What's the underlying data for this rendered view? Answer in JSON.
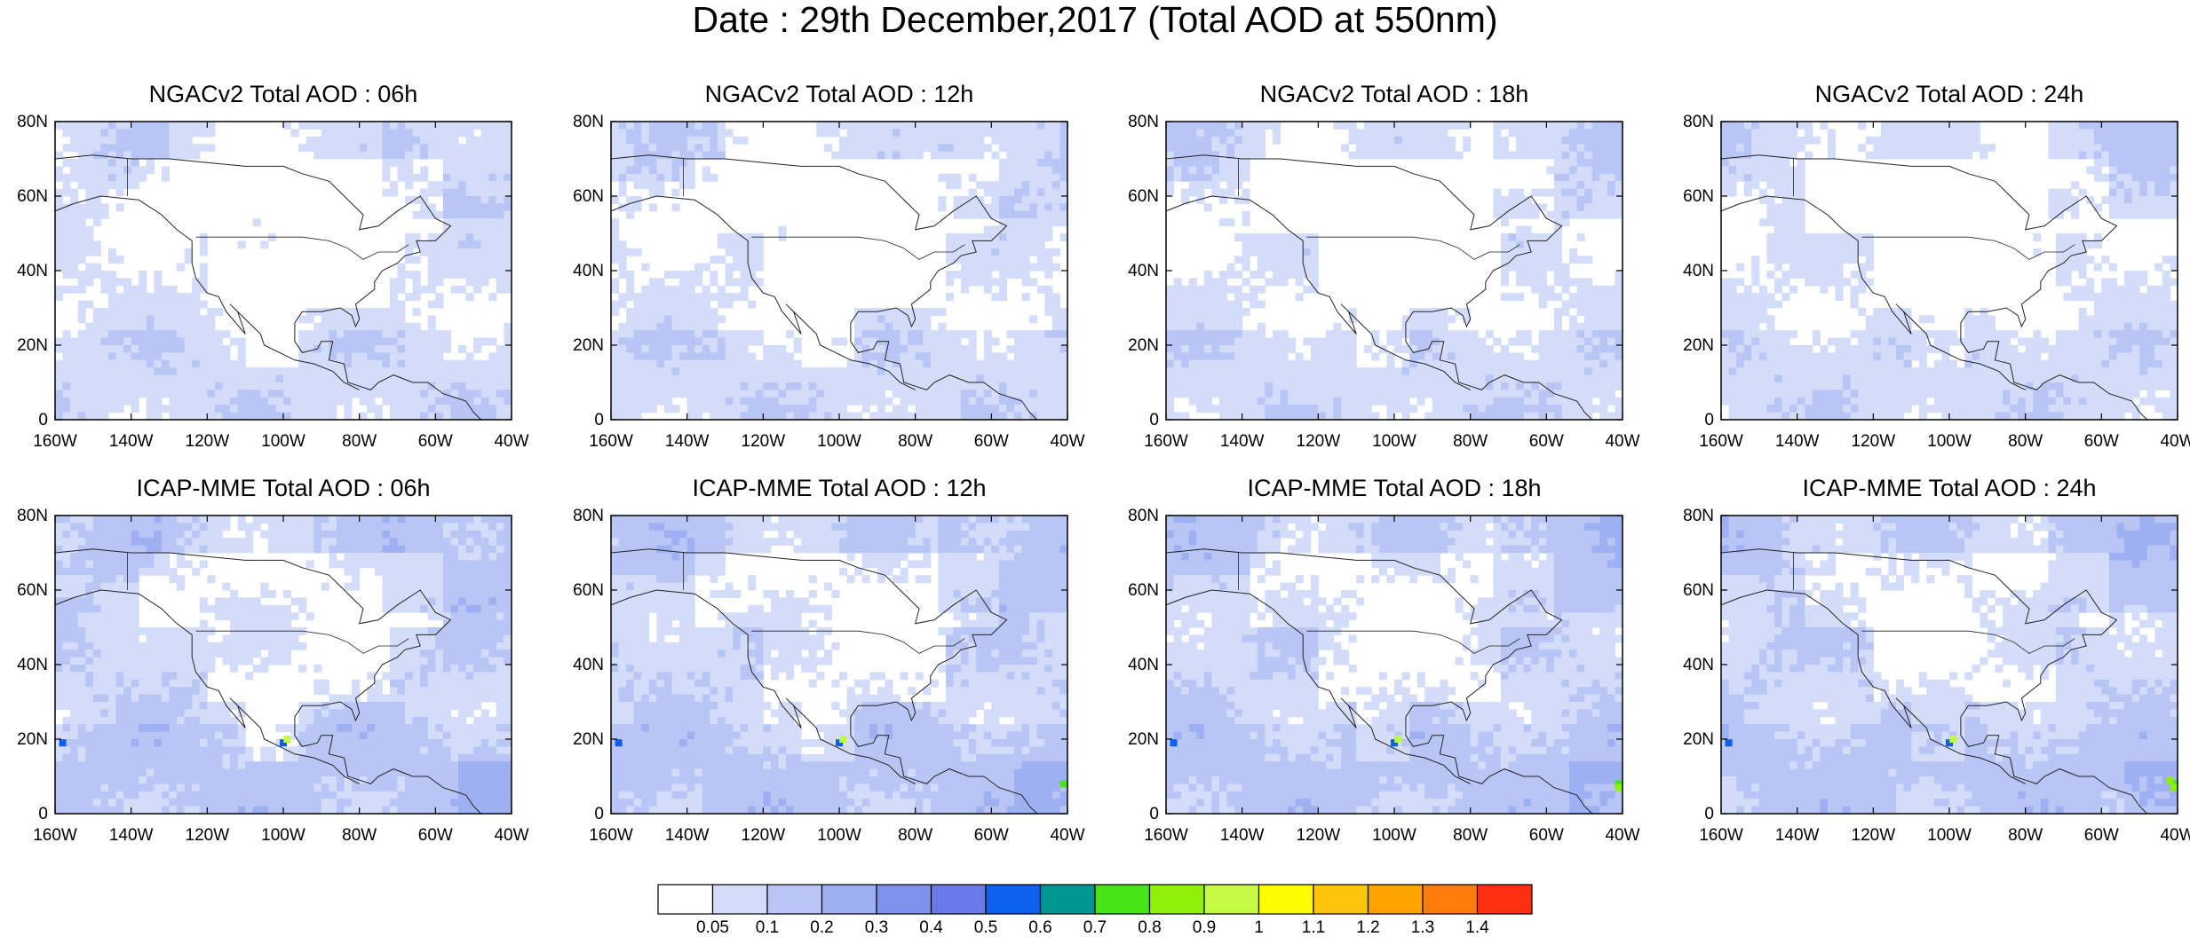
{
  "title": "Date : 29th December,2017 (Total AOD at 550nm)",
  "panels": [
    {
      "title": "NGACv2 Total AOD : 06h",
      "model": "NGACv2",
      "hour": 6
    },
    {
      "title": "NGACv2 Total AOD : 12h",
      "model": "NGACv2",
      "hour": 12
    },
    {
      "title": "NGACv2 Total AOD : 18h",
      "model": "NGACv2",
      "hour": 18
    },
    {
      "title": "NGACv2 Total AOD : 24h",
      "model": "NGACv2",
      "hour": 24
    },
    {
      "title": "ICAP-MME Total AOD : 06h",
      "model": "ICAP-MME",
      "hour": 6
    },
    {
      "title": "ICAP-MME Total AOD : 12h",
      "model": "ICAP-MME",
      "hour": 12
    },
    {
      "title": "ICAP-MME Total AOD : 18h",
      "model": "ICAP-MME",
      "hour": 18
    },
    {
      "title": "ICAP-MME Total AOD : 24h",
      "model": "ICAP-MME",
      "hour": 24
    }
  ],
  "lat_ticks": [
    "80N",
    "60N",
    "40N",
    "20N",
    "0"
  ],
  "lon_ticks": [
    "160W",
    "140W",
    "120W",
    "100W",
    "80W",
    "60W",
    "40W"
  ],
  "extent": {
    "lon_min": -160,
    "lon_max": -40,
    "lat_min": 0,
    "lat_max": 80
  },
  "colorbar": {
    "colors": [
      "#ffffff",
      "#d3dcf9",
      "#b8c5f5",
      "#9eaff2",
      "#7f93ee",
      "#6a78e8",
      "#0d60ee",
      "#00968f",
      "#47e515",
      "#8ff00a",
      "#c4fa45",
      "#fffb00",
      "#ffc40c",
      "#ffa200",
      "#ff7b0c",
      "#ff2f12"
    ],
    "labels": [
      "0.05",
      "0.1",
      "0.2",
      "0.3",
      "0.4",
      "0.5",
      "0.6",
      "0.7",
      "0.8",
      "0.9",
      "1",
      "1.1",
      "1.2",
      "1.3",
      "1.4"
    ]
  }
}
